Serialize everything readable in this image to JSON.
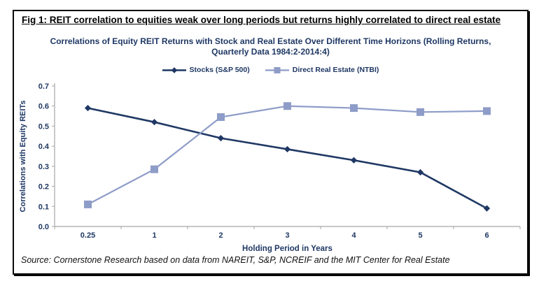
{
  "figure": {
    "title": "Fig 1: REIT correlation to equities weak over long periods but returns highly correlated to direct real estate",
    "source": "Source: Cornerstone Research based on data from NAREIT, S&P, NCREIF and the MIT Center for Real Estate"
  },
  "chart_data": {
    "type": "line",
    "title": "Correlations of Equity REIT Returns with Stock and Real Estate Over Different Time Horizons (Rolling Returns, Quarterly Data 1984:2-2014:4)",
    "title_lines": [
      "Correlations of Equity REIT Returns with Stock and Real Estate Over Different Time Horizons (Rolling Returns,",
      "Quarterly Data 1984:2-2014:4)"
    ],
    "categories": [
      "0.25",
      "1",
      "2",
      "3",
      "4",
      "5",
      "6"
    ],
    "series": [
      {
        "name": "Stocks (S&P 500)",
        "marker": "diamond",
        "color": "#1F3864",
        "values": [
          0.59,
          0.52,
          0.44,
          0.385,
          0.33,
          0.27,
          0.09
        ]
      },
      {
        "name": "Direct Real Estate (NTBI)",
        "marker": "square",
        "color": "#8E9CC8",
        "values": [
          0.11,
          0.285,
          0.545,
          0.6,
          0.59,
          0.57,
          0.575
        ]
      }
    ],
    "xlabel": "Holding Period in Years",
    "ylabel": "Correlations with Equity REITs",
    "ylim": [
      0.0,
      0.7
    ],
    "yticks": [
      "0.0",
      "0.1",
      "0.2",
      "0.3",
      "0.4",
      "0.5",
      "0.6",
      "0.7"
    ],
    "grid": false,
    "legend_position": "top"
  },
  "colors": {
    "accent_navy": "#1F3864",
    "light_blue": "#8E9CC8",
    "axis_gray": "#A6A6A6",
    "frame_border": "#0a0a0a"
  }
}
